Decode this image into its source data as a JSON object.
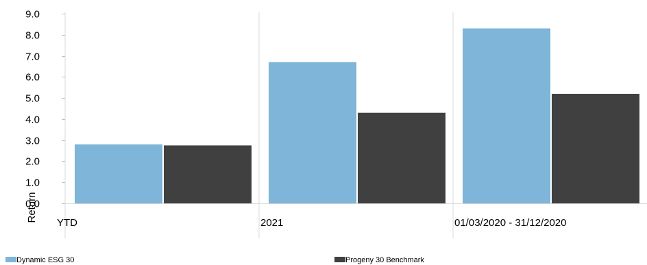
{
  "chart_data": {
    "type": "bar",
    "categories": [
      "YTD",
      "2021",
      "01/03/2020 - 31/12/2020"
    ],
    "series": [
      {
        "name": "Dynamic ESG 30",
        "values": [
          2.8,
          6.7,
          8.3
        ],
        "color": "#7eb5d8"
      },
      {
        "name": "Progeny 30 Benchmark",
        "values": [
          2.75,
          4.3,
          5.2
        ],
        "color": "#404040"
      }
    ],
    "title": "",
    "xlabel": "",
    "ylabel": "Return",
    "ylim": [
      0,
      9
    ],
    "yticks": [
      "0.0",
      "1.0",
      "2.0",
      "3.0",
      "4.0",
      "5.0",
      "6.0",
      "7.0",
      "8.0",
      "9.0"
    ],
    "grid": "vertical category separators",
    "legend_placement": "bottom"
  }
}
